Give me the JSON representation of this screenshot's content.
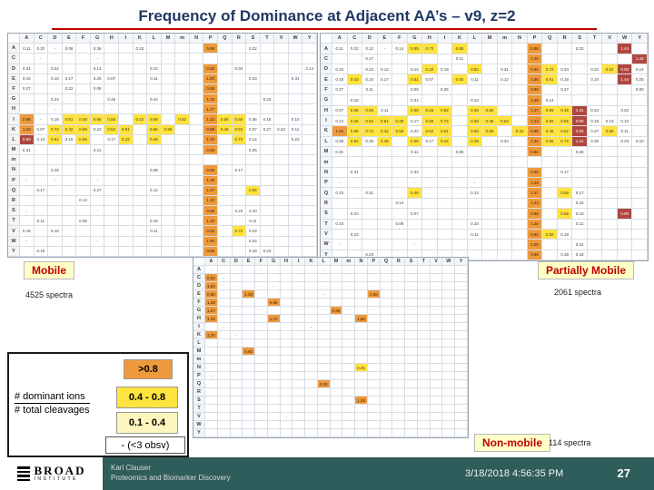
{
  "title": "Frequency of Dominance at Adjacent AA’s – v9, z=2",
  "colors": {
    "title_navy": "#1F3864",
    "accent_red": "#C00000",
    "label_red": "#C00000",
    "label_bg": "#FFFFC8",
    "cell_orange": "#EE9A3C",
    "cell_yellow": "#FFE33E",
    "cell_red": "#B0473F",
    "legend_pale": "#FFF6BF",
    "footer_bg": "#2F5D5B"
  },
  "aa_letters": [
    "A",
    "C",
    "D",
    "E",
    "F",
    "G",
    "H",
    "I",
    "K",
    "L",
    "M",
    "m",
    "N",
    "P",
    "Q",
    "R",
    "S",
    "T",
    "V",
    "W",
    "Y"
  ],
  "cell_values": {
    "white": [
      "0.11",
      "0.22",
      "0.12",
      "0.08",
      "0.14",
      "0.36",
      "0.18",
      "0.23",
      "0.10",
      "0.17",
      "0.31",
      "0.25",
      "0.07",
      "0.27",
      "0.34"
    ],
    "yellow": [
      "0.45",
      "0.52",
      "0.61",
      "0.48",
      "0.66",
      "0.55",
      "0.72",
      "0.42",
      "0.58"
    ],
    "orange": [
      "1.20",
      "0.85",
      "1.23",
      "0.92",
      "1.29",
      "0.88",
      "1.50",
      "1.27"
    ],
    "red": [
      "0.90",
      "1.44",
      "0.93"
    ],
    "dash": "-"
  },
  "heatmaps": {
    "mobile": {
      "label": "Mobile",
      "spectra": "4525 spectra",
      "rows": [
        "nn-n.n..n....o..n....",
        ".-...-....-..........",
        "n.n..n...n...o.n....n",
        "n.nn.nn..n...o..n..n.",
        "n..n.n.......o.......",
        "..n...n..n...o...n...",
        "..-...-......o.......",
        "o-nyyyy.yy.y.oyynn.n.",
        "onyyynyy.yy..oyynnnn.",
        "rnyny.ny.y...o.yn..n.",
        "n....n.......o..n....",
        ".....................",
        "..n......n...o.n.....",
        "-.-..-.......o.......",
        ".n...n...n...o..y....",
        "....n........o.......",
        "-....-.......o.nn....",
        ".n..n....n...o..n....",
        "n.n......n...o.yn....",
        "-....-.......o..n....",
        ".n...........o..nn..."
      ]
    },
    "partially_mobile": {
      "label": "Partially Mobile",
      "spectra": "2061 spectra",
      "rows": [
        "nnn-nyy.y....o..n..r.",
        "..n.....n....o......r",
        "n.nn.nyn.y.n.oyn.nyrn",
        "nynn.yn.yn.n.oyn.n.rn",
        "n.n..n.n.....o.n....n",
        ".n...n...n...on......",
        "nyyn.yyy.yy..oyyrn.n.",
        "nyyyynyy.yyy.oyyrnnn.",
        "oyyyynyy.yy.yoyyrnyn.",
        "nyny.yny.y.n.oyyrn.nn",
        "n....n..n....o..n....",
        ".....................",
        ".n...n.......o.n.....",
        "-....-...-...o.......",
        "n.n..y...n...o.yn....",
        "....n........o..n....",
        ".n...n.......o.yn..r.",
        "n...n....n...o..n....",
        ".n.......n...oyn.....",
        "-....-.......o..n....",
        "..n..........o.nn...."
      ]
    },
    "non_mobile": {
      "label": "Non-mobile",
      "spectra": "114 spectra",
      "rows": [
        "-...-....-...........",
        "o-...................",
        "o....-...............",
        "o..o.....-...o.......",
        "o....o...............",
        "o.........o..........",
        "o....o......o........",
        ".-......-............",
        "o.-..................",
        ".....................",
        "...o.................",
        ".....................",
        "............y........",
        "-....................",
        ".........o...........",
        ".....................",
        "............o........",
        ".....................",
        "......-..............",
        ".....................",
        "....................."
      ]
    }
  },
  "legend": {
    "gt": ">0.8",
    "mid": "0.4 - 0.8",
    "low": "0.1 - 0.4",
    "none": "- (<3 obsv)",
    "numerator": "# dominant ions",
    "denominator": "# total cleavages"
  },
  "footer": {
    "logo_line1": "BROAD",
    "logo_line2": "INSTITUTE",
    "credit_line1": "Karl Clauser",
    "credit_line2": "Proteomics and Biomarker Discovery",
    "datetime": "3/18/2018 4:56:35 PM",
    "page": "27"
  }
}
